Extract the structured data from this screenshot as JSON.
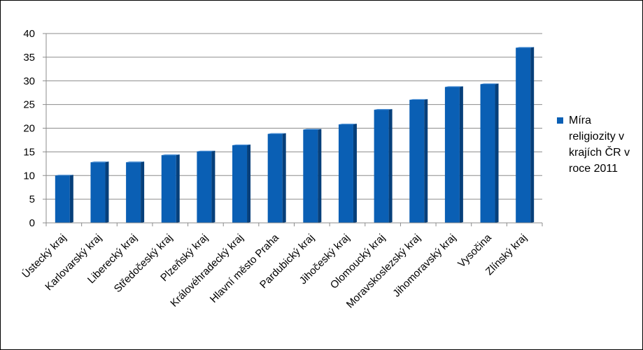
{
  "chart_data": {
    "type": "bar",
    "categories": [
      "Ústecký kraj",
      "Karlovarský kraj",
      "Liberecký kraj",
      "Středočeský kraj",
      "Plzeňský kraj",
      "Královéhradecký kraj",
      "Hlavní město Praha",
      "Pardubický kraj",
      "Jihočeský kraj",
      "Olomoucký kraj",
      "Moravskoslezský kraj",
      "Jihomoravský kraj",
      "Vysočina",
      "Zlínský kraj"
    ],
    "series": [
      {
        "name": "Míra religiozity v krajích ČR v roce 2011",
        "values": [
          10.0,
          12.8,
          12.8,
          14.3,
          15.1,
          16.4,
          18.8,
          19.7,
          20.8,
          23.9,
          26.0,
          28.7,
          29.3,
          37.0
        ]
      }
    ],
    "ylim": [
      0,
      40
    ],
    "yticks": [
      0,
      5,
      10,
      15,
      20,
      25,
      30,
      35,
      40
    ],
    "grid": true,
    "legend_position": "right",
    "colors": {
      "bar_front": "#0a5fb4",
      "bar_side": "#063f7a",
      "bar_top": "#3c86d2",
      "grid": "#8c8c8c"
    }
  }
}
